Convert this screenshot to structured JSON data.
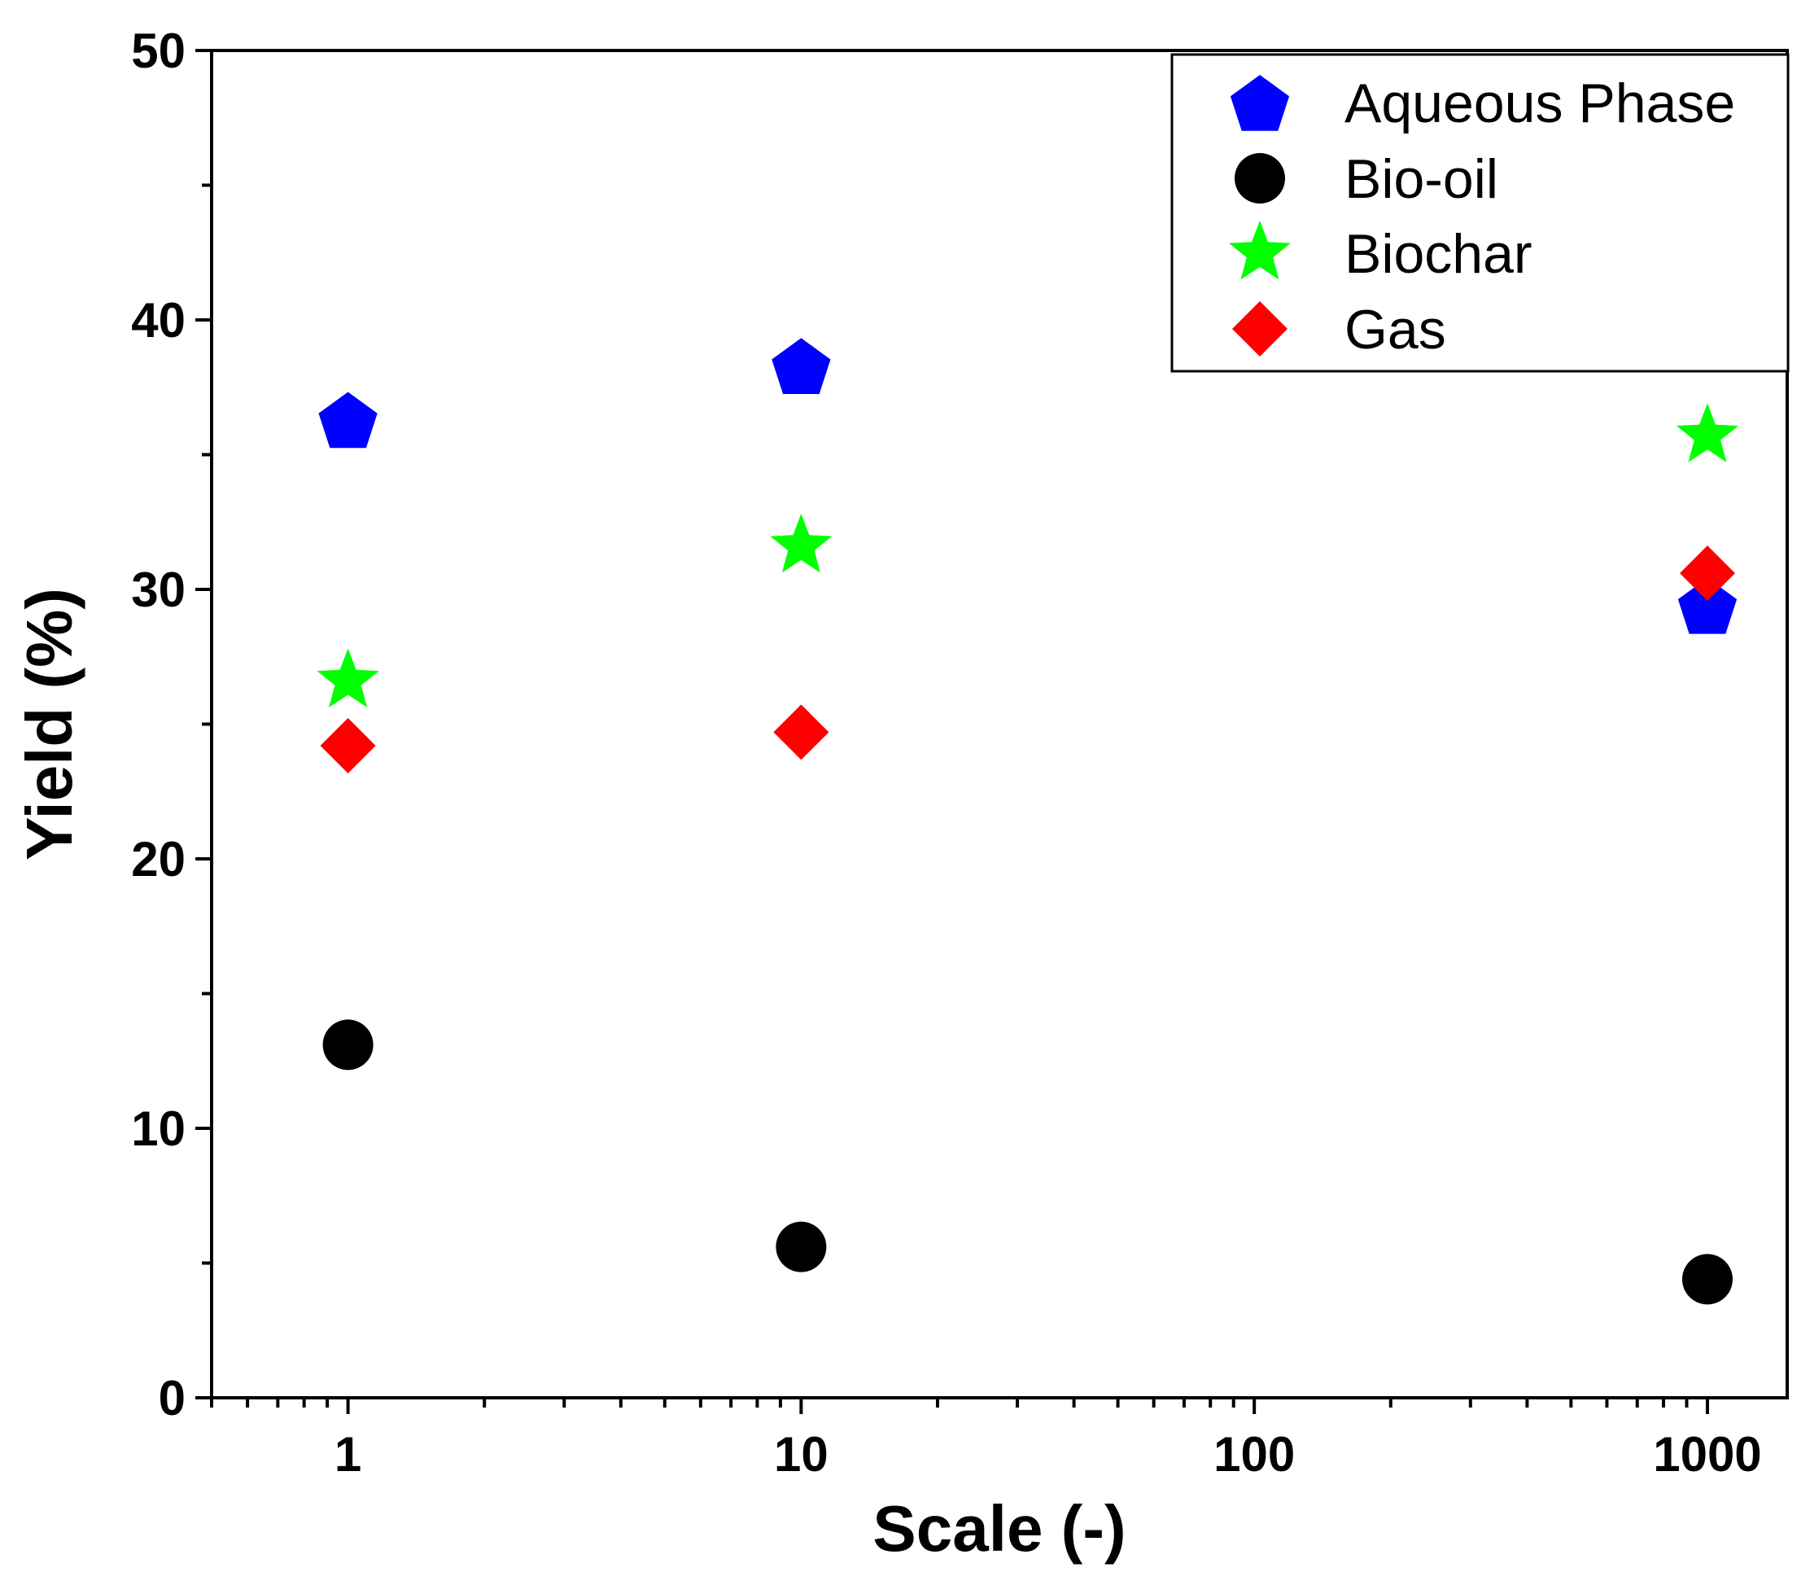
{
  "chart_data": {
    "type": "scatter",
    "title": "",
    "xlabel": "Scale (-)",
    "ylabel": "Yield (%)",
    "xscale": "log",
    "xlim": [
      0.5,
      1500
    ],
    "ylim": [
      0,
      50
    ],
    "xticks": [
      1,
      10,
      100,
      1000
    ],
    "xtick_labels": [
      "1",
      "10",
      "100",
      "1000"
    ],
    "yticks": [
      0,
      10,
      20,
      30,
      40,
      50
    ],
    "ytick_labels": [
      "0",
      "10",
      "20",
      "30",
      "40",
      "50"
    ],
    "grid": false,
    "legend_position": "top-right",
    "x": [
      1,
      10,
      1000
    ],
    "series": [
      {
        "name": "Aqueous Phase",
        "marker": "pentagon",
        "color": "#0000ff",
        "values": [
          36.3,
          38.3,
          29.4
        ]
      },
      {
        "name": "Bio-oil",
        "marker": "circle",
        "color": "#000000",
        "values": [
          13.1,
          5.6,
          4.4
        ]
      },
      {
        "name": "Biochar",
        "marker": "star",
        "color": "#00ff00",
        "values": [
          26.6,
          31.6,
          35.7
        ]
      },
      {
        "name": "Gas",
        "marker": "diamond",
        "color": "#ff0000",
        "values": [
          24.2,
          24.7,
          30.6
        ]
      }
    ]
  }
}
